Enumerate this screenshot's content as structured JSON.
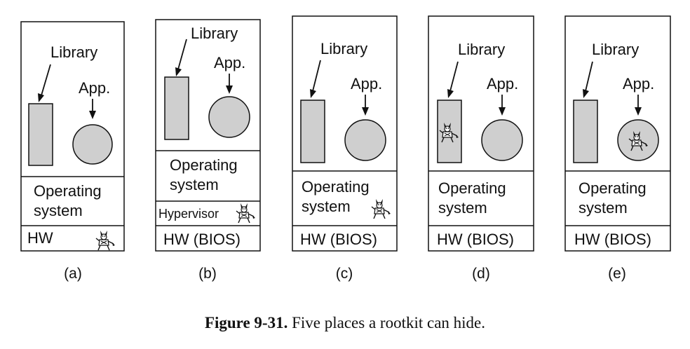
{
  "panels": [
    {
      "library": "Library",
      "app": "App.",
      "os_line1": "Operating",
      "os_line2": "system",
      "hw": "HW",
      "sublabel": "(a)"
    },
    {
      "library": "Library",
      "app": "App.",
      "os_line1": "Operating",
      "os_line2": "system",
      "hypervisor": "Hypervisor",
      "hw": "HW (BIOS)",
      "sublabel": "(b)"
    },
    {
      "library": "Library",
      "app": "App.",
      "os_line1": "Operating",
      "os_line2": "system",
      "hw": "HW (BIOS)",
      "sublabel": "(c)"
    },
    {
      "library": "Library",
      "app": "App.",
      "os_line1": "Operating",
      "os_line2": "system",
      "hw": "HW (BIOS)",
      "sublabel": "(d)"
    },
    {
      "library": "Library",
      "app": "App.",
      "os_line1": "Operating",
      "os_line2": "system",
      "hw": "HW (BIOS)",
      "sublabel": "(e)"
    }
  ],
  "caption": {
    "number": "Figure 9-31.",
    "text": "Five places a rootkit can hide."
  }
}
